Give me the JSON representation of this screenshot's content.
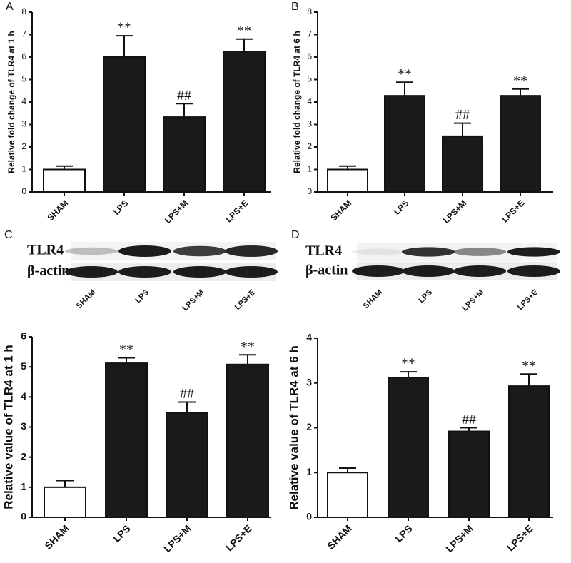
{
  "chart_data": [
    {
      "type": "bar",
      "panel": "A",
      "ylabel": "Relative fold change of TLR4 at 1 h",
      "categories": [
        "SHAM",
        "LPS",
        "LPS+M",
        "LPS+E"
      ],
      "values": [
        1,
        6.0,
        3.33,
        6.25
      ],
      "errors": [
        0.15,
        0.95,
        0.6,
        0.55
      ],
      "annotations": [
        null,
        "**",
        "##",
        "**"
      ],
      "colors": [
        "#ffffff",
        "#1a1a1a",
        "#1a1a1a",
        "#1a1a1a"
      ],
      "ylim": [
        0,
        8
      ],
      "yticks": [
        0,
        1,
        2,
        3,
        4,
        5,
        6,
        7,
        8
      ]
    },
    {
      "type": "bar",
      "panel": "B",
      "ylabel": "Relative fold change of TLR4 at 6 h",
      "categories": [
        "SHAM",
        "LPS",
        "LPS+M",
        "LPS+E"
      ],
      "values": [
        1,
        4.28,
        2.48,
        4.28
      ],
      "errors": [
        0.15,
        0.6,
        0.58,
        0.3
      ],
      "annotations": [
        null,
        "**",
        "##",
        "**"
      ],
      "colors": [
        "#ffffff",
        "#1a1a1a",
        "#1a1a1a",
        "#1a1a1a"
      ],
      "ylim": [
        0,
        8
      ],
      "yticks": [
        0,
        1,
        2,
        3,
        4,
        5,
        6,
        7,
        8
      ]
    },
    {
      "type": "bar",
      "ylabel": "Relative value of TLR4 at 1 h",
      "categories": [
        "SHAM",
        "LPS",
        "LPS+M",
        "LPS+E"
      ],
      "values": [
        1,
        5.12,
        3.48,
        5.08
      ],
      "errors": [
        0.22,
        0.18,
        0.35,
        0.32
      ],
      "annotations": [
        null,
        "**",
        "##",
        "**"
      ],
      "colors": [
        "#ffffff",
        "#1a1a1a",
        "#1a1a1a",
        "#1a1a1a"
      ],
      "ylim": [
        0,
        6
      ],
      "yticks": [
        0,
        1,
        2,
        3,
        4,
        5,
        6
      ]
    },
    {
      "type": "bar",
      "ylabel": "Relative value of TLR4 at 6 h",
      "categories": [
        "SHAM",
        "LPS",
        "LPS+M",
        "LPS+E"
      ],
      "values": [
        1,
        3.12,
        1.92,
        2.93
      ],
      "errors": [
        0.1,
        0.13,
        0.08,
        0.27
      ],
      "annotations": [
        null,
        "**",
        "##",
        "**"
      ],
      "colors": [
        "#ffffff",
        "#1a1a1a",
        "#1a1a1a",
        "#1a1a1a"
      ],
      "ylim": [
        0,
        4
      ],
      "yticks": [
        0,
        1,
        2,
        3,
        4
      ]
    }
  ],
  "blots": [
    {
      "panel": "C",
      "rows": [
        "TLR4",
        "β-actin"
      ],
      "lanes": [
        "SHAM",
        "LPS",
        "LPS+M",
        "LPS+E"
      ]
    },
    {
      "panel": "D",
      "rows": [
        "TLR4",
        "β-actin"
      ],
      "lanes": [
        "SHAM",
        "LPS",
        "LPS+M",
        "LPS+E"
      ]
    }
  ]
}
